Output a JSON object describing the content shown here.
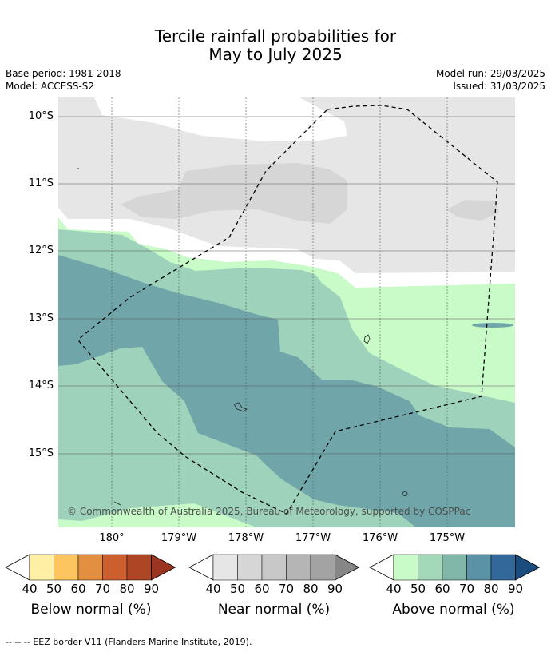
{
  "title_line1": "Tercile rainfall probabilities for",
  "title_line2": "May to July 2025",
  "base_period": "Base period: 1981-2018",
  "model": "Model: ACCESS-S2",
  "model_run": "Model run: 29/03/2025",
  "issued": "Issued: 31/03/2025",
  "lat_labels": [
    "10°S",
    "11°S",
    "12°S",
    "13°S",
    "14°S",
    "15°S"
  ],
  "lon_labels": [
    "180°",
    "179°W",
    "178°W",
    "177°W",
    "176°W",
    "175°W"
  ],
  "copyright": "© Commonwealth of Australia 2025, Bureau of Meteorology, supported by COSPPac",
  "legends": [
    {
      "title": "Below normal (%)",
      "ticks": [
        "40",
        "50",
        "60",
        "70",
        "80",
        "90"
      ],
      "colors": [
        "#fdefa3",
        "#fdc560",
        "#e38f42",
        "#cd5f2f",
        "#ae4525",
        "#9b3420"
      ]
    },
    {
      "title": "Near normal (%)",
      "ticks": [
        "40",
        "50",
        "60",
        "70",
        "80",
        "90"
      ],
      "colors": [
        "#e6e6e6",
        "#d6d6d6",
        "#c8c8c8",
        "#b5b5b5",
        "#a3a3a3",
        "#868686"
      ]
    },
    {
      "title": "Above normal (%)",
      "ticks": [
        "40",
        "50",
        "60",
        "70",
        "80",
        "90"
      ],
      "colors": [
        "#c9fbc9",
        "#a3d8b8",
        "#80b7a9",
        "#5b92a6",
        "#33689a",
        "#1a4c7e"
      ]
    }
  ],
  "footnote": "--  --  -- EEZ border V11 (Flanders Marine Institute, 2019).",
  "colors": {
    "near_40": "#e6e6e6",
    "near_50": "#d6d6d6",
    "above_40": "#c9fbc9",
    "above_50": "#9ed2ba",
    "above_60": "#70a6aa",
    "grid": "#555555"
  }
}
